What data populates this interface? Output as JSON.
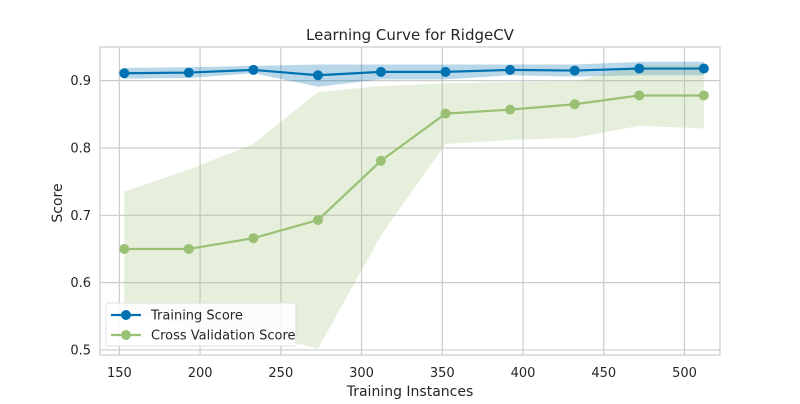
{
  "chart_data": {
    "type": "line",
    "title": "Learning Curve for RidgeCV",
    "xlabel": "Training Instances",
    "ylabel": "Score",
    "xlim": [
      138,
      522
    ],
    "ylim": [
      0.4925,
      0.95
    ],
    "x_ticks": [
      150,
      200,
      250,
      300,
      350,
      400,
      450,
      500
    ],
    "x_tick_labels": [
      "150",
      "200",
      "250",
      "300",
      "350",
      "400",
      "450",
      "500"
    ],
    "y_ticks": [
      0.5,
      0.6,
      0.7,
      0.8,
      0.9
    ],
    "y_tick_labels": [
      "0.5",
      "0.6",
      "0.7",
      "0.8",
      "0.9"
    ],
    "grid": true,
    "legend_position": "lower-left",
    "x": [
      153,
      193,
      233,
      273,
      312,
      352,
      392,
      432,
      472,
      512
    ],
    "series": [
      {
        "name": "Training Score",
        "color": "#0072b2",
        "band_color": "#0072b2",
        "values": [
          0.911,
          0.912,
          0.916,
          0.908,
          0.913,
          0.913,
          0.916,
          0.915,
          0.918,
          0.918
        ],
        "band_upper": [
          0.919,
          0.92,
          0.922,
          0.924,
          0.924,
          0.924,
          0.924,
          0.924,
          0.928,
          0.928
        ],
        "band_lower": [
          0.903,
          0.904,
          0.911,
          0.891,
          0.902,
          0.902,
          0.908,
          0.906,
          0.908,
          0.908
        ]
      },
      {
        "name": "Cross Validation Score",
        "color": "#9ac074",
        "band_color": "#9ac074",
        "values": [
          0.65,
          0.65,
          0.666,
          0.693,
          0.781,
          0.851,
          0.857,
          0.865,
          0.878,
          0.878
        ],
        "band_upper": [
          0.735,
          0.768,
          0.806,
          0.883,
          0.892,
          0.896,
          0.898,
          0.899,
          0.923,
          0.923
        ],
        "band_lower": [
          0.565,
          0.532,
          0.526,
          0.502,
          0.67,
          0.806,
          0.812,
          0.815,
          0.833,
          0.829
        ]
      }
    ]
  }
}
